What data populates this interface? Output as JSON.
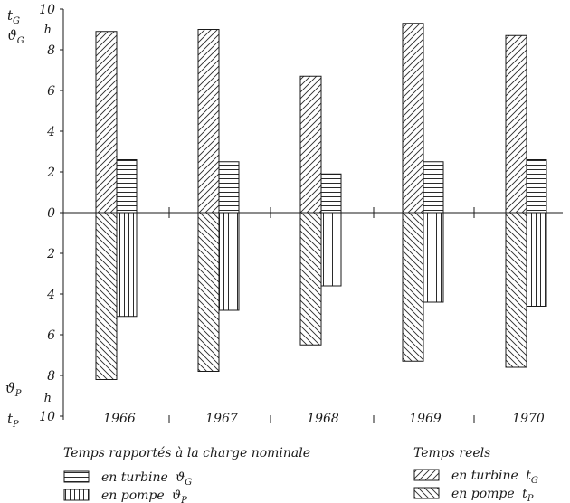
{
  "chart_data": {
    "type": "bar",
    "categories": [
      "1966",
      "1967",
      "1968",
      "1969",
      "1970"
    ],
    "y_axis": {
      "range": [
        -10,
        10
      ],
      "tick_labels": [
        "10",
        "8",
        "6",
        "4",
        "2",
        "0",
        "2",
        "4",
        "6",
        "8",
        "10"
      ],
      "top_labels": {
        "t": "t_G",
        "theta": "ϑ_G",
        "unit": "h"
      },
      "bottom_labels": {
        "t": "t_P",
        "theta": "ϑ_P",
        "unit": "h"
      }
    },
    "series": [
      {
        "name": "en turbine t_G",
        "group": "Temps reels",
        "pattern": "diag-right",
        "direction": "up",
        "values": [
          8.9,
          9.0,
          6.7,
          9.3,
          8.7
        ]
      },
      {
        "name": "en turbine ϑ_G",
        "group": "Temps rapportés à la charge nominale",
        "pattern": "horizontal",
        "direction": "up",
        "values": [
          2.6,
          2.5,
          1.9,
          2.5,
          2.6
        ]
      },
      {
        "name": "en pompe t_P",
        "group": "Temps reels",
        "pattern": "diag-left",
        "direction": "down",
        "values": [
          8.2,
          7.8,
          6.5,
          7.3,
          7.6
        ]
      },
      {
        "name": "en pompe ϑ_P",
        "group": "Temps rapportés à la charge nominale",
        "pattern": "vertical",
        "direction": "down",
        "values": [
          5.1,
          4.8,
          3.6,
          4.4,
          4.6
        ]
      }
    ],
    "grid": false
  },
  "legend": {
    "left_title": "Temps rapportés à la charge nominale",
    "left_items": [
      {
        "text": "en turbine",
        "symbol": "ϑ",
        "sub": "G",
        "pattern": "horizontal"
      },
      {
        "text": "en pompe",
        "symbol": "ϑ",
        "sub": "P",
        "pattern": "vertical"
      }
    ],
    "right_title": "Temps reels",
    "right_items": [
      {
        "text": "en turbine",
        "symbol": "t",
        "sub": "G",
        "pattern": "diag-right"
      },
      {
        "text": "en pompe",
        "symbol": "t",
        "sub": "P",
        "pattern": "diag-left"
      }
    ]
  }
}
